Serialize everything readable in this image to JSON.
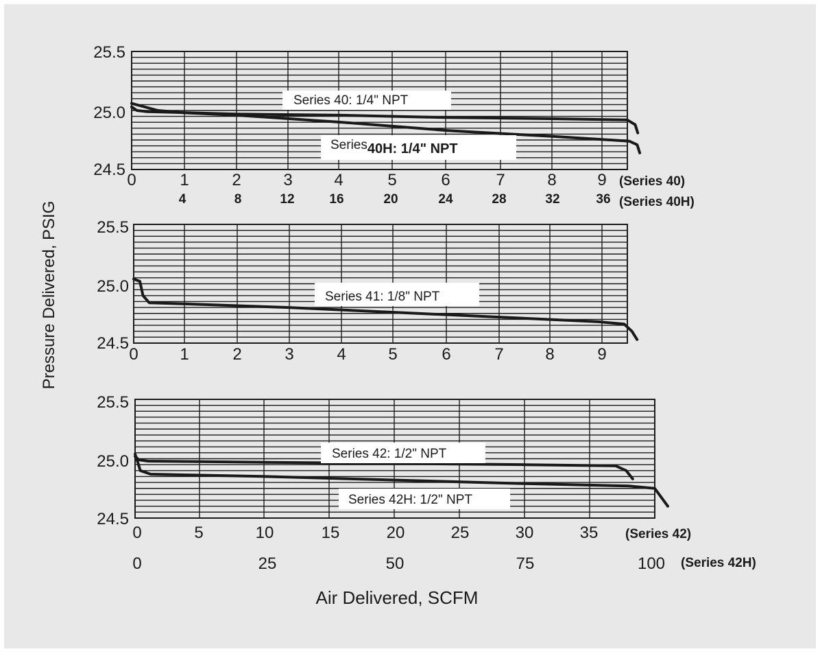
{
  "colors": {
    "background": "#e8e8e8",
    "ink": "#1a1a1a",
    "label_bg": "#ffffff"
  },
  "ylabel": "Pressure Delivered, PSIG",
  "xlabel": "Air Delivered, SCFM",
  "chart_data": [
    {
      "type": "line",
      "ylim": [
        24.5,
        25.5
      ],
      "y_ticks": [
        "25.5",
        "25.0",
        "24.5"
      ],
      "grid": true,
      "x_axes": [
        {
          "ticks": [
            "0",
            "1",
            "2",
            "3",
            "4",
            "5",
            "6",
            "7",
            "8",
            "9"
          ],
          "values": [
            0,
            1,
            2,
            3,
            4,
            5,
            6,
            7,
            8,
            9
          ],
          "label": "(Series  40)"
        },
        {
          "ticks": [
            "4",
            "8",
            "12",
            "16",
            "20",
            "24",
            "28",
            "32",
            "36"
          ],
          "values": [
            4,
            8,
            12,
            16,
            20,
            24,
            28,
            32,
            36
          ],
          "label": "(Series  40H)"
        }
      ],
      "series": [
        {
          "name": "Series 40: 1/4\" NPT",
          "x": [
            0,
            0.1,
            0.3,
            2,
            4,
            6,
            8,
            9.45,
            9.6,
            9.65
          ],
          "y": [
            25.03,
            25.0,
            24.99,
            24.97,
            24.96,
            24.94,
            24.93,
            24.92,
            24.88,
            24.81
          ]
        },
        {
          "name_prefix": "Series",
          "name_bold": "40H:  1/4\"  NPT",
          "x": [
            0,
            2,
            4,
            8,
            16,
            24,
            32,
            37.8,
            38.4,
            38.6
          ],
          "y": [
            25.06,
            25.0,
            24.98,
            24.96,
            24.9,
            24.83,
            24.78,
            24.74,
            24.71,
            24.64
          ]
        }
      ]
    },
    {
      "type": "line",
      "ylim": [
        24.5,
        25.5
      ],
      "y_ticks": [
        "25.5",
        "25.0",
        "24.5"
      ],
      "grid": true,
      "x_axes": [
        {
          "ticks": [
            "0",
            "1",
            "2",
            "3",
            "4",
            "5",
            "6",
            "7",
            "8",
            "9"
          ],
          "values": [
            0,
            1,
            2,
            3,
            4,
            5,
            6,
            7,
            8,
            9
          ],
          "label": ""
        }
      ],
      "series": [
        {
          "name": "Series 41: 1/8\" NPT",
          "x": [
            0,
            0.12,
            0.18,
            0.3,
            1,
            3,
            5,
            7,
            9,
            9.5,
            9.65,
            9.75
          ],
          "y": [
            25.04,
            25.02,
            24.9,
            24.84,
            24.83,
            24.8,
            24.76,
            24.72,
            24.68,
            24.66,
            24.6,
            24.53
          ]
        }
      ]
    },
    {
      "type": "line",
      "ylim": [
        24.5,
        25.5
      ],
      "y_ticks": [
        "25.5",
        "25.0",
        "24.5"
      ],
      "grid": true,
      "x_axes": [
        {
          "ticks": [
            "0",
            "5",
            "10",
            "15",
            "20",
            "25",
            "30",
            "35"
          ],
          "values": [
            0,
            5,
            10,
            15,
            20,
            25,
            30,
            35
          ],
          "label": "(Series  42)"
        },
        {
          "ticks": [
            "0",
            "25",
            "50",
            "75",
            "100"
          ],
          "values": [
            0,
            25,
            50,
            75,
            100
          ],
          "label": "(Series  42H)"
        }
      ],
      "series": [
        {
          "name": "Series 42: 1/2\" NPT",
          "x": [
            0,
            0.3,
            1,
            10,
            20,
            30,
            37,
            37.8,
            38.3
          ],
          "y": [
            25.02,
            24.99,
            24.98,
            24.97,
            24.96,
            24.95,
            24.94,
            24.9,
            24.83
          ]
        },
        {
          "name": "Series 42H: 1/2\" NPT",
          "x": [
            0,
            0.6,
            1,
            3,
            25,
            50,
            75,
            95,
            100,
            102.5
          ],
          "y": [
            25.04,
            24.96,
            24.9,
            24.87,
            24.85,
            24.82,
            24.79,
            24.77,
            24.75,
            24.6
          ]
        }
      ]
    }
  ]
}
